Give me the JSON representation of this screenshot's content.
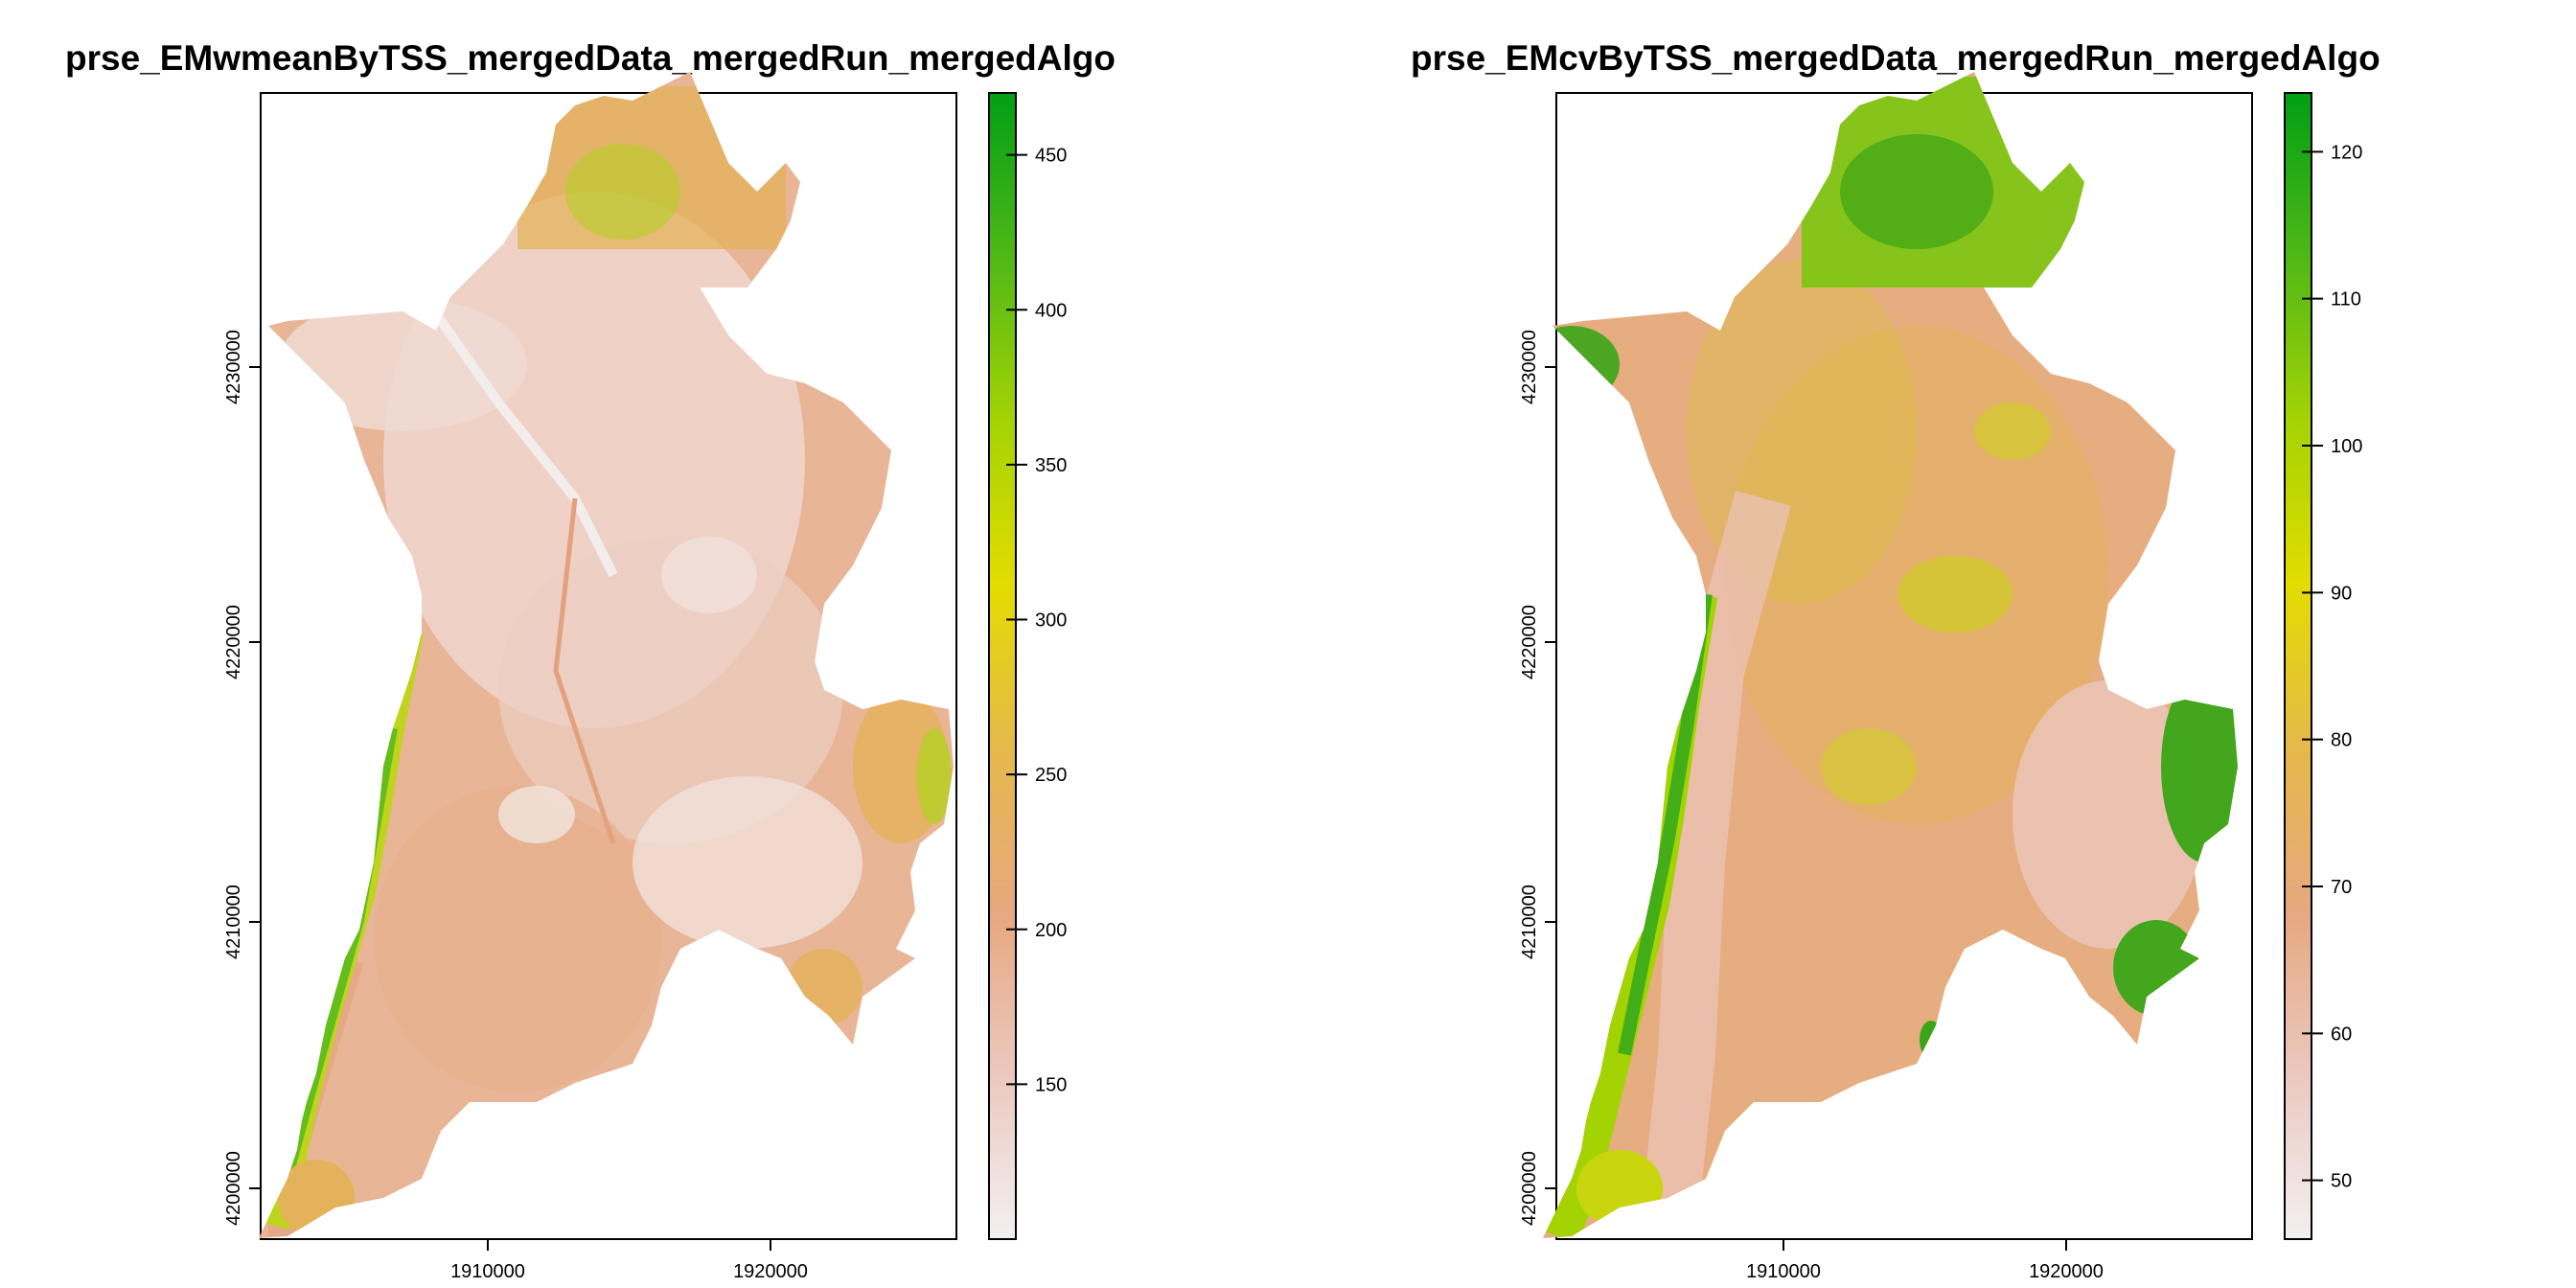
{
  "panels": [
    {
      "title": "prse_EMwmeanByTSS_mergedData_mergedRun_mergedAlgo",
      "x_ticks": [
        "1910000",
        "1920000"
      ],
      "y_ticks": [
        "4200000",
        "4210000",
        "4220000",
        "4230000"
      ],
      "legend_ticks": [
        "150",
        "200",
        "250",
        "300",
        "350",
        "400",
        "450"
      ],
      "legend_range": [
        100,
        470
      ],
      "palette": [
        "#f2f0f0",
        "#ebc8bf",
        "#e6a87f",
        "#e5b94a",
        "#e3dc00",
        "#a4d304",
        "#4fb816",
        "#009f14"
      ]
    },
    {
      "title": "prse_EMcvByTSS_mergedData_mergedRun_mergedAlgo",
      "x_ticks": [
        "1910000",
        "1920000"
      ],
      "y_ticks": [
        "4200000",
        "4210000",
        "4220000",
        "4230000"
      ],
      "legend_ticks": [
        "50",
        "60",
        "70",
        "80",
        "90",
        "100",
        "110",
        "120"
      ],
      "legend_range": [
        46,
        124
      ],
      "palette": [
        "#f2f0f0",
        "#ebc8bf",
        "#e6a87f",
        "#e5b94a",
        "#e3dc00",
        "#a4d304",
        "#4fb816",
        "#009f14"
      ]
    }
  ]
}
